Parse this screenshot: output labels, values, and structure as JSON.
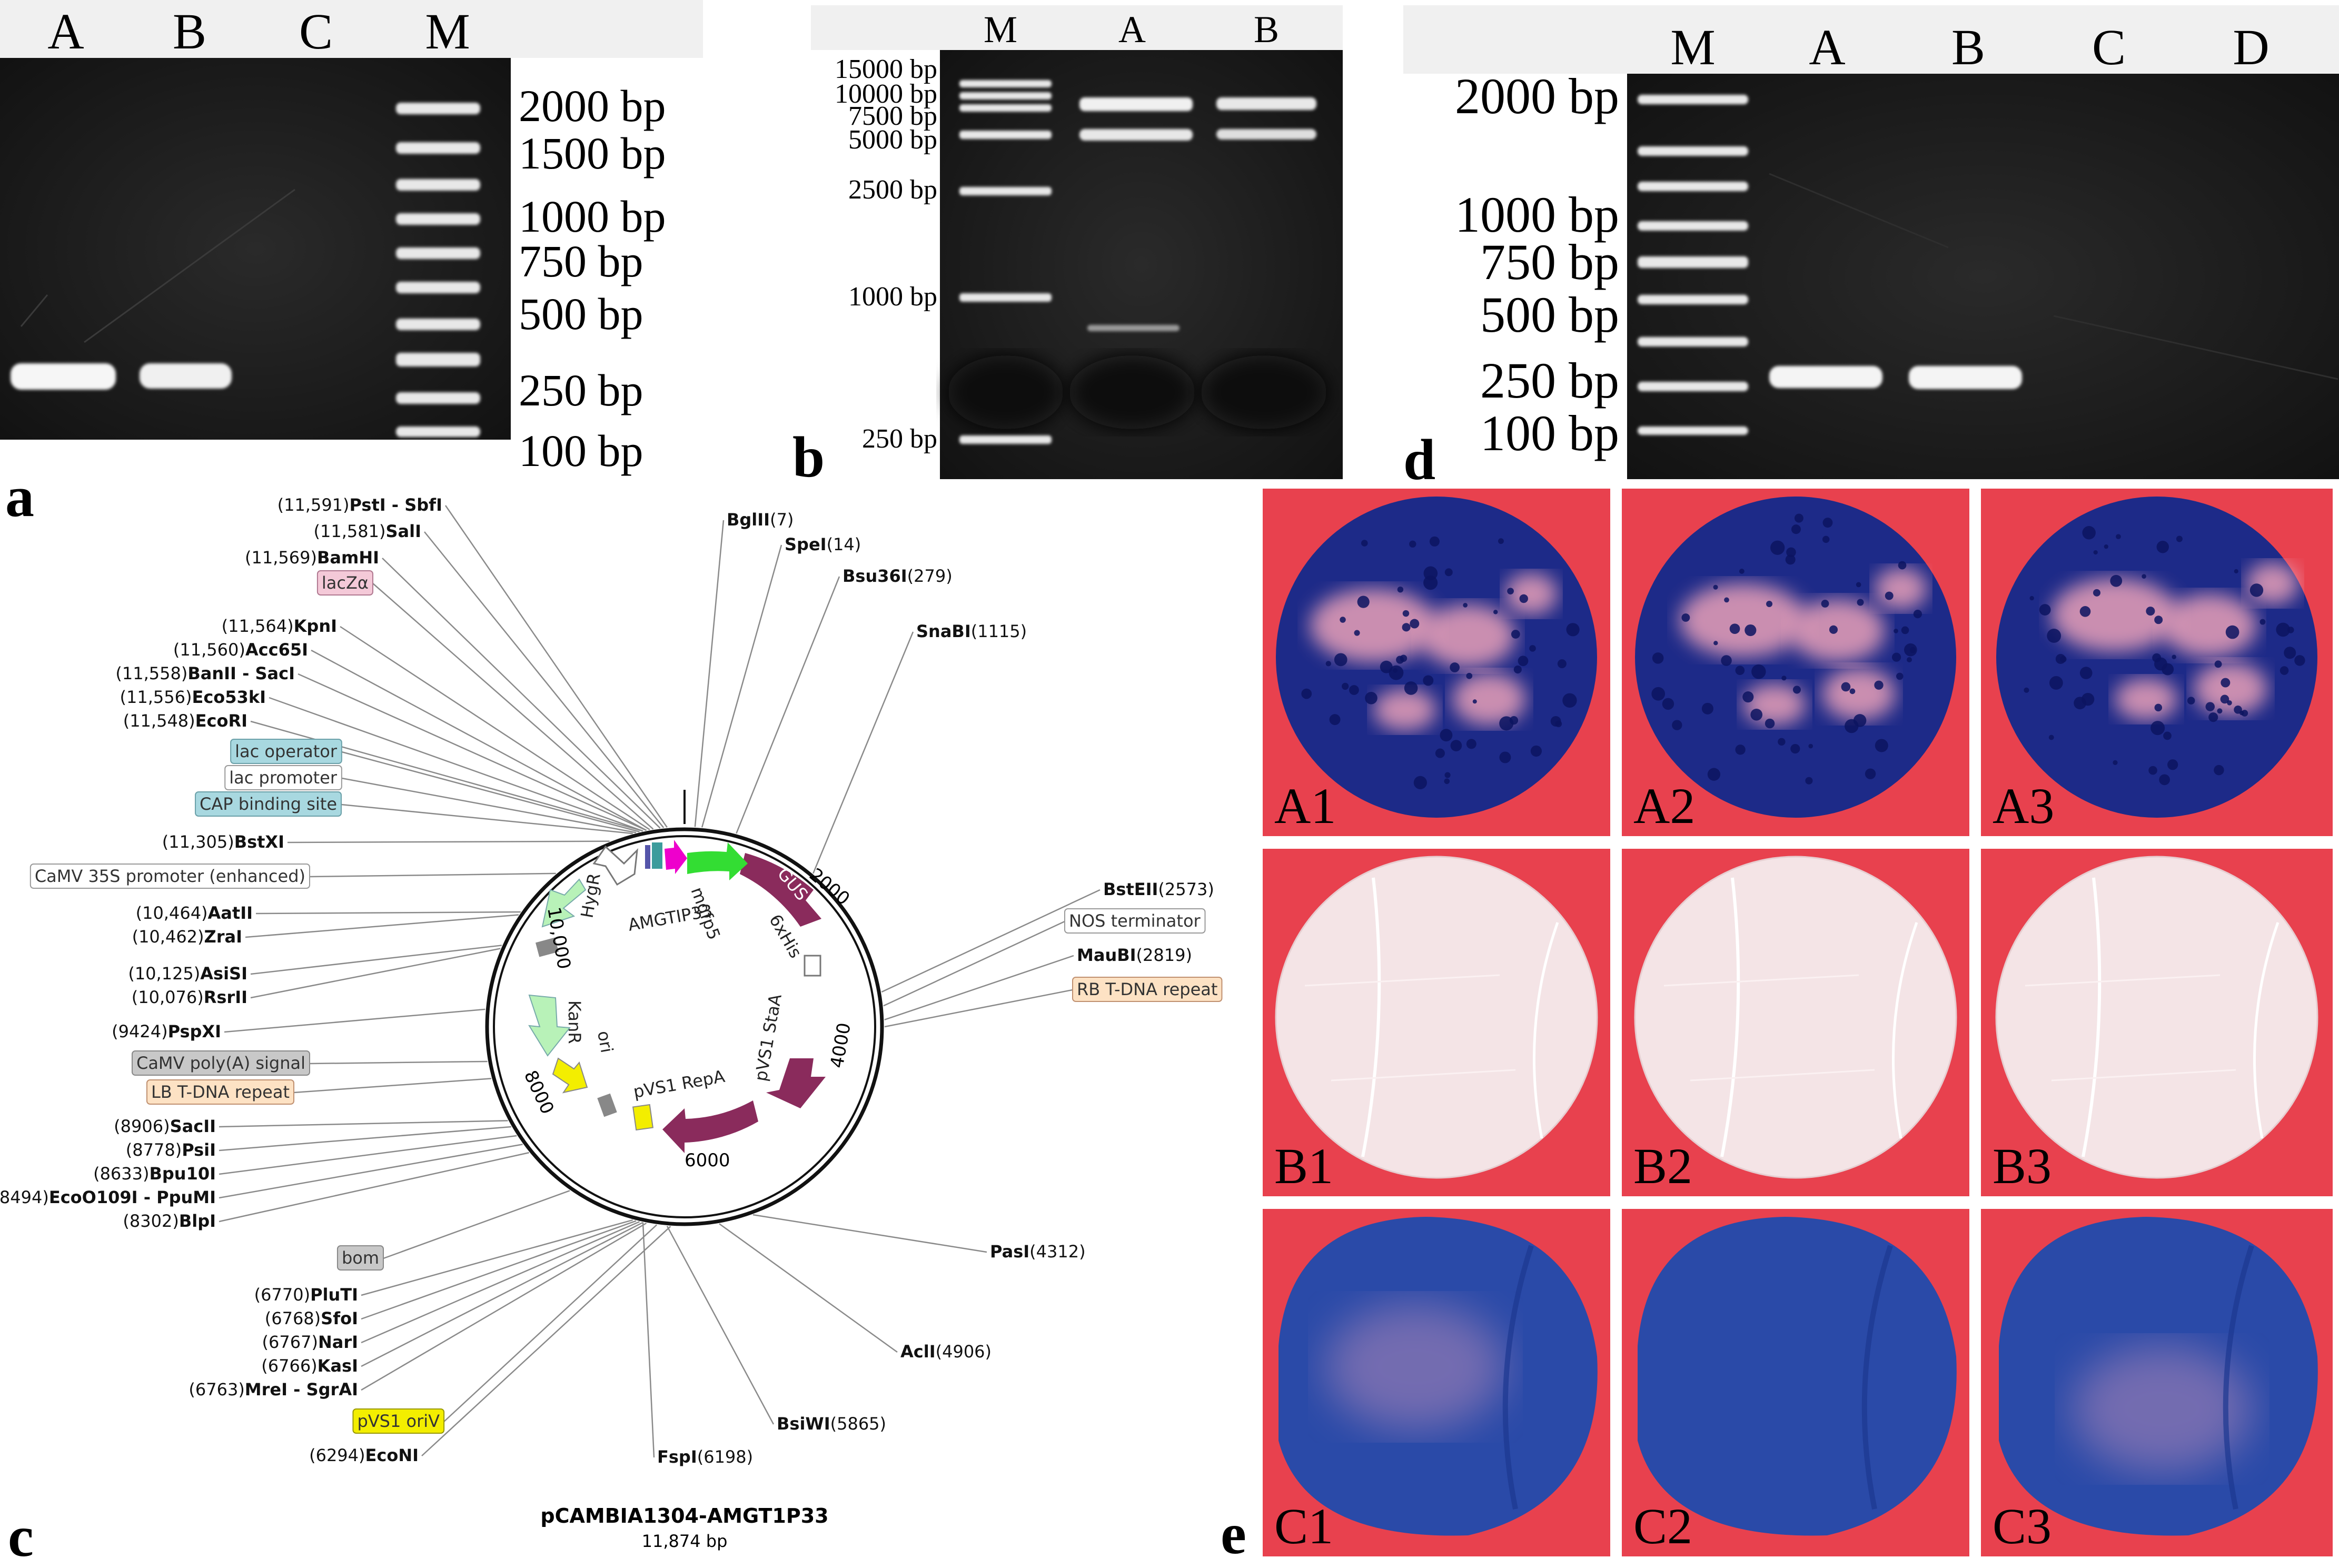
{
  "panel_a": {
    "letter": "a",
    "lanes": [
      "A",
      "B",
      "C",
      "M"
    ],
    "ladder": [
      "2000 bp",
      "1500 bp",
      "1000 bp",
      "750 bp",
      "500 bp",
      "250 bp",
      "100 bp"
    ]
  },
  "panel_b": {
    "letter": "b",
    "lanes": [
      "M",
      "A",
      "B"
    ],
    "ladder": [
      "15000 bp",
      "10000 bp",
      "7500 bp",
      "5000 bp",
      "2500 bp",
      "1000 bp",
      "250 bp"
    ]
  },
  "panel_d": {
    "letter": "d",
    "lanes": [
      "M",
      "A",
      "B",
      "C",
      "D"
    ],
    "ladder": [
      "2000 bp",
      "1000 bp",
      "750 bp",
      "500 bp",
      "250 bp",
      "100 bp"
    ]
  },
  "panel_c": {
    "letter": "c",
    "plasmid_name": "pCAMBIA1304-AMGT1P33",
    "plasmid_size": "11,874 bp",
    "map_ticks": [
      "2000",
      "4000",
      "6000",
      "8000",
      "10,000"
    ],
    "left_sites": [
      {
        "pos": "(11,591)",
        "name": "PstI - SbfI"
      },
      {
        "pos": "(11,581)",
        "name": "SalI"
      },
      {
        "pos": "(11,569)",
        "name": "BamHI"
      },
      {
        "feature": "lacZα"
      },
      {
        "pos": "(11,564)",
        "name": "KpnI"
      },
      {
        "pos": "(11,560)",
        "name": "Acc65I"
      },
      {
        "pos": "(11,558)",
        "name": "BanII - SacI"
      },
      {
        "pos": "(11,556)",
        "name": "Eco53kI"
      },
      {
        "pos": "(11,548)",
        "name": "EcoRI"
      },
      {
        "feature": "lac operator"
      },
      {
        "feature": "lac promoter"
      },
      {
        "feature": "CAP binding site"
      },
      {
        "pos": "(11,305)",
        "name": "BstXI"
      },
      {
        "feature": "CaMV 35S promoter (enhanced)"
      },
      {
        "pos": "(10,464)",
        "name": "AatII"
      },
      {
        "pos": "(10,462)",
        "name": "ZraI"
      },
      {
        "pos": "(10,125)",
        "name": "AsiSI"
      },
      {
        "pos": "(10,076)",
        "name": "RsrII"
      },
      {
        "pos": "(9424)",
        "name": "PspXI"
      },
      {
        "feature": "CaMV poly(A) signal"
      },
      {
        "feature": "LB T-DNA repeat"
      },
      {
        "pos": "(8906)",
        "name": "SacII"
      },
      {
        "pos": "(8778)",
        "name": "PsiI"
      },
      {
        "pos": "(8633)",
        "name": "Bpu10I"
      },
      {
        "pos": "(8494)",
        "name": "EcoO109I - PpuMI"
      },
      {
        "pos": "(8302)",
        "name": "BlpI"
      },
      {
        "feature": "bom"
      },
      {
        "pos": "(6770)",
        "name": "PluTI"
      },
      {
        "pos": "(6768)",
        "name": "SfoI"
      },
      {
        "pos": "(6767)",
        "name": "NarI"
      },
      {
        "pos": "(6766)",
        "name": "KasI"
      },
      {
        "pos": "(6763)",
        "name": "MreI - SgrAI"
      },
      {
        "feature": "pVS1 oriV"
      },
      {
        "pos": "(6294)",
        "name": "EcoNI"
      }
    ],
    "right_sites": [
      {
        "name": "BglII",
        "pos": "(7)"
      },
      {
        "name": "SpeI",
        "pos": "(14)"
      },
      {
        "name": "Bsu36I",
        "pos": "(279)"
      },
      {
        "name": "SnaBI",
        "pos": "(1115)"
      },
      {
        "name": "BstEII",
        "pos": "(2573)"
      },
      {
        "feature": "NOS terminator"
      },
      {
        "name": "MauBI",
        "pos": "(2819)"
      },
      {
        "feature": "RB T-DNA repeat"
      },
      {
        "name": "PasI",
        "pos": "(4312)"
      },
      {
        "name": "AclI",
        "pos": "(4906)"
      },
      {
        "name": "BsiWI",
        "pos": "(5865)"
      },
      {
        "name": "FspI",
        "pos": "(6198)"
      }
    ],
    "inner_features": [
      "mgfp5",
      "GUS",
      "6xHis",
      "AMGTIP33",
      "HygR",
      "pVS1 StaA",
      "KanR",
      "ori",
      "pVS1 RepA"
    ]
  },
  "panel_e": {
    "letter": "e",
    "labels": [
      "A1",
      "A2",
      "A3",
      "B1",
      "B2",
      "B3",
      "C1",
      "C2",
      "C3"
    ]
  },
  "colors": {
    "gel_bg": "#151515",
    "band": "#f4f4f4",
    "gus_blue": "#1a2a8c",
    "leaf_white": "#f3e4e6",
    "petri_red": "#e8414e"
  }
}
